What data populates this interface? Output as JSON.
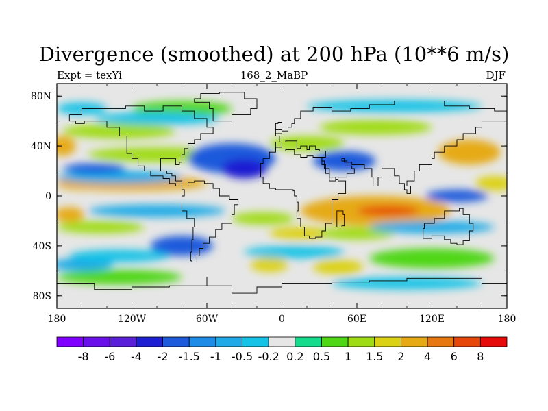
{
  "title": "Divergence (smoothed) at 200 hPa (10**6 m/s)",
  "subtitle_left": "Expt = texYi",
  "subtitle_center": "168_2_MaBP",
  "subtitle_right": "DJF",
  "map": {
    "lon_range": [
      -180,
      180
    ],
    "lat_range": [
      -90,
      90
    ],
    "x_ticks": [
      {
        "value": -180,
        "label": "180"
      },
      {
        "value": -120,
        "label": "120W"
      },
      {
        "value": -60,
        "label": "60W"
      },
      {
        "value": 0,
        "label": "0"
      },
      {
        "value": 60,
        "label": "60E"
      },
      {
        "value": 120,
        "label": "120E"
      },
      {
        "value": 180,
        "label": "180"
      }
    ],
    "y_ticks": [
      {
        "value": 80,
        "label": "80N"
      },
      {
        "value": 40,
        "label": "40N"
      },
      {
        "value": 0,
        "label": "0"
      },
      {
        "value": -40,
        "label": "40S"
      },
      {
        "value": -80,
        "label": "80S"
      }
    ],
    "background_color": "#e6e6e6",
    "coastline_color": "#000000"
  },
  "colorbar": {
    "colors": [
      "#7f00ff",
      "#6a10ea",
      "#5a1fd8",
      "#1e1ed2",
      "#1e5adc",
      "#1e8ce6",
      "#1eaae6",
      "#14c3e6",
      "#e6e6e6",
      "#14dc8c",
      "#50d714",
      "#a0dc14",
      "#dcd214",
      "#e6aa14",
      "#e6780f",
      "#e6460a",
      "#e60a0a"
    ],
    "labels": [
      "-8",
      "-6",
      "-4",
      "-2",
      "-1.5",
      "-1",
      "-0.5",
      "-0.2",
      "0.2",
      "0.5",
      "1",
      "1.5",
      "2",
      "4",
      "6",
      "8"
    ]
  },
  "field_blobs": [
    {
      "lon": -120,
      "lat": 10,
      "rx": 60,
      "ry": 6,
      "value": 2
    },
    {
      "lon": -160,
      "lat": 10,
      "rx": 20,
      "ry": 5,
      "value": 2
    },
    {
      "lon": -175,
      "lat": 40,
      "rx": 10,
      "ry": 8,
      "value": 2
    },
    {
      "lon": -170,
      "lat": -15,
      "rx": 12,
      "ry": 6,
      "value": 2
    },
    {
      "lon": -100,
      "lat": 33,
      "rx": 55,
      "ry": 6,
      "value": 1
    },
    {
      "lon": -130,
      "lat": 52,
      "rx": 45,
      "ry": 6,
      "value": 1
    },
    {
      "lon": -80,
      "lat": 70,
      "rx": 40,
      "ry": 6,
      "value": 0.5
    },
    {
      "lon": 20,
      "lat": 42,
      "rx": 30,
      "ry": 6,
      "value": 1
    },
    {
      "lon": 75,
      "lat": 55,
      "rx": 45,
      "ry": 6,
      "value": 1
    },
    {
      "lon": 75,
      "lat": -12,
      "rx": 60,
      "ry": 12,
      "value": 2
    },
    {
      "lon": 85,
      "lat": -12,
      "rx": 25,
      "ry": 4,
      "value": 6
    },
    {
      "lon": 150,
      "lat": 35,
      "rx": 25,
      "ry": 10,
      "value": 2
    },
    {
      "lon": 170,
      "lat": 10,
      "rx": 15,
      "ry": 6,
      "value": 1.5
    },
    {
      "lon": 15,
      "lat": -30,
      "rx": 25,
      "ry": 5,
      "value": 1.5
    },
    {
      "lon": 60,
      "lat": -30,
      "rx": 30,
      "ry": 5,
      "value": 1
    },
    {
      "lon": -15,
      "lat": -18,
      "rx": 25,
      "ry": 5,
      "value": 1
    },
    {
      "lon": -145,
      "lat": -25,
      "rx": 35,
      "ry": 5,
      "value": 1
    },
    {
      "lon": 45,
      "lat": -57,
      "rx": 20,
      "ry": 6,
      "value": 1.5
    },
    {
      "lon": -10,
      "lat": -55,
      "rx": 15,
      "ry": 6,
      "value": 1.5
    },
    {
      "lon": 120,
      "lat": -50,
      "rx": 50,
      "ry": 8,
      "value": 0.5
    },
    {
      "lon": -130,
      "lat": -65,
      "rx": 50,
      "ry": 6,
      "value": 0.5
    },
    {
      "lon": -40,
      "lat": 30,
      "rx": 35,
      "ry": 12,
      "value": -2
    },
    {
      "lon": -30,
      "lat": 22,
      "rx": 18,
      "ry": 8,
      "value": -4
    },
    {
      "lon": 50,
      "lat": 28,
      "rx": 25,
      "ry": 8,
      "value": -2
    },
    {
      "lon": -130,
      "lat": 15,
      "rx": 50,
      "ry": 5,
      "value": -1
    },
    {
      "lon": -150,
      "lat": 22,
      "rx": 25,
      "ry": 4,
      "value": -2
    },
    {
      "lon": -80,
      "lat": -40,
      "rx": 25,
      "ry": 8,
      "value": -2
    },
    {
      "lon": 140,
      "lat": 0,
      "rx": 25,
      "ry": 5,
      "value": -2
    },
    {
      "lon": 120,
      "lat": -25,
      "rx": 50,
      "ry": 5,
      "value": -1
    },
    {
      "lon": -100,
      "lat": -12,
      "rx": 55,
      "ry": 5,
      "value": -1
    },
    {
      "lon": -100,
      "lat": 62,
      "rx": 50,
      "ry": 5,
      "value": -0.5
    },
    {
      "lon": 90,
      "lat": 72,
      "rx": 70,
      "ry": 5,
      "value": -0.5
    },
    {
      "lon": -160,
      "lat": 70,
      "rx": 20,
      "ry": 5,
      "value": -0.5
    },
    {
      "lon": 10,
      "lat": -45,
      "rx": 40,
      "ry": 5,
      "value": -0.5
    },
    {
      "lon": 100,
      "lat": -70,
      "rx": 60,
      "ry": 5,
      "value": -0.5
    },
    {
      "lon": -160,
      "lat": -55,
      "rx": 25,
      "ry": 5,
      "value": -1
    },
    {
      "lon": -130,
      "lat": -48,
      "rx": 40,
      "ry": 5,
      "value": -0.5
    }
  ],
  "coastlines": [
    [
      [
        -170,
        65
      ],
      [
        -160,
        70
      ],
      [
        -140,
        70
      ],
      [
        -125,
        72
      ],
      [
        -110,
        68
      ],
      [
        -95,
        72
      ],
      [
        -80,
        68
      ],
      [
        -70,
        62
      ],
      [
        -60,
        55
      ],
      [
        -55,
        50
      ],
      [
        -65,
        45
      ],
      [
        -70,
        42
      ],
      [
        -75,
        38
      ],
      [
        -78,
        33
      ],
      [
        -80,
        27
      ],
      [
        -82,
        25
      ],
      [
        -85,
        30
      ],
      [
        -90,
        30
      ],
      [
        -97,
        27
      ],
      [
        -97,
        20
      ],
      [
        -92,
        18
      ],
      [
        -88,
        16
      ],
      [
        -85,
        12
      ],
      [
        -80,
        8
      ],
      [
        -85,
        10
      ],
      [
        -90,
        14
      ],
      [
        -95,
        16
      ],
      [
        -105,
        20
      ],
      [
        -110,
        24
      ],
      [
        -115,
        30
      ],
      [
        -120,
        34
      ],
      [
        -124,
        40
      ],
      [
        -124,
        48
      ],
      [
        -130,
        55
      ],
      [
        -140,
        60
      ],
      [
        -150,
        60
      ],
      [
        -158,
        58
      ],
      [
        -165,
        60
      ],
      [
        -170,
        65
      ]
    ],
    [
      [
        -80,
        8
      ],
      [
        -75,
        11
      ],
      [
        -70,
        12
      ],
      [
        -62,
        10
      ],
      [
        -55,
        6
      ],
      [
        -50,
        0
      ],
      [
        -42,
        -3
      ],
      [
        -35,
        -7
      ],
      [
        -38,
        -15
      ],
      [
        -40,
        -22
      ],
      [
        -48,
        -27
      ],
      [
        -53,
        -33
      ],
      [
        -58,
        -38
      ],
      [
        -63,
        -42
      ],
      [
        -66,
        -48
      ],
      [
        -68,
        -53
      ],
      [
        -72,
        -52
      ],
      [
        -73,
        -45
      ],
      [
        -72,
        -35
      ],
      [
        -71,
        -25
      ],
      [
        -70,
        -18
      ],
      [
        -76,
        -12
      ],
      [
        -80,
        -5
      ],
      [
        -80,
        0
      ],
      [
        -78,
        5
      ],
      [
        -80,
        8
      ]
    ],
    [
      [
        -10,
        36
      ],
      [
        -5,
        43
      ],
      [
        -2,
        48
      ],
      [
        -5,
        50
      ],
      [
        0,
        52
      ],
      [
        5,
        55
      ],
      [
        8,
        58
      ],
      [
        10,
        62
      ],
      [
        15,
        68
      ],
      [
        25,
        71
      ],
      [
        40,
        68
      ],
      [
        55,
        70
      ],
      [
        70,
        73
      ],
      [
        90,
        76
      ],
      [
        110,
        76
      ],
      [
        130,
        72
      ],
      [
        150,
        70
      ],
      [
        170,
        68
      ],
      [
        180,
        67
      ]
    ],
    [
      [
        180,
        60
      ],
      [
        165,
        60
      ],
      [
        160,
        55
      ],
      [
        155,
        50
      ],
      [
        145,
        45
      ],
      [
        140,
        40
      ],
      [
        130,
        35
      ],
      [
        122,
        30
      ],
      [
        120,
        25
      ],
      [
        110,
        20
      ],
      [
        106,
        12
      ],
      [
        100,
        8
      ],
      [
        103,
        2
      ],
      [
        100,
        5
      ],
      [
        98,
        10
      ],
      [
        94,
        16
      ],
      [
        90,
        22
      ],
      [
        88,
        22
      ],
      [
        80,
        15
      ],
      [
        77,
        8
      ],
      [
        73,
        15
      ],
      [
        72,
        22
      ],
      [
        66,
        25
      ],
      [
        58,
        25
      ],
      [
        56,
        27
      ],
      [
        50,
        30
      ],
      [
        48,
        28
      ],
      [
        52,
        24
      ],
      [
        56,
        22
      ],
      [
        58,
        18
      ],
      [
        52,
        15
      ],
      [
        45,
        13
      ],
      [
        43,
        15
      ],
      [
        38,
        22
      ],
      [
        34,
        28
      ],
      [
        32,
        31
      ],
      [
        35,
        36
      ],
      [
        30,
        37
      ],
      [
        27,
        40
      ],
      [
        22,
        37
      ],
      [
        20,
        40
      ],
      [
        15,
        38
      ],
      [
        12,
        44
      ],
      [
        8,
        44
      ],
      [
        3,
        43
      ],
      [
        0,
        39
      ],
      [
        -5,
        36
      ],
      [
        -10,
        36
      ]
    ],
    [
      [
        -17,
        21
      ],
      [
        -17,
        15
      ],
      [
        -15,
        10
      ],
      [
        -10,
        6
      ],
      [
        -5,
        5
      ],
      [
        0,
        5
      ],
      [
        5,
        5
      ],
      [
        9,
        4
      ],
      [
        10,
        0
      ],
      [
        12,
        -5
      ],
      [
        13,
        -12
      ],
      [
        12,
        -18
      ],
      [
        15,
        -25
      ],
      [
        18,
        -32
      ],
      [
        22,
        -34
      ],
      [
        27,
        -33
      ],
      [
        32,
        -28
      ],
      [
        35,
        -22
      ],
      [
        40,
        -15
      ],
      [
        40,
        -10
      ],
      [
        40,
        -3
      ],
      [
        45,
        2
      ],
      [
        51,
        12
      ],
      [
        45,
        13
      ],
      [
        43,
        12
      ],
      [
        38,
        18
      ],
      [
        35,
        25
      ],
      [
        32,
        31
      ],
      [
        25,
        32
      ],
      [
        20,
        31
      ],
      [
        15,
        33
      ],
      [
        10,
        37
      ],
      [
        3,
        36
      ],
      [
        -5,
        35
      ],
      [
        -10,
        30
      ],
      [
        -15,
        26
      ],
      [
        -17,
        21
      ]
    ],
    [
      [
        114,
        -22
      ],
      [
        122,
        -18
      ],
      [
        130,
        -12
      ],
      [
        137,
        -12
      ],
      [
        142,
        -10
      ],
      [
        145,
        -15
      ],
      [
        150,
        -22
      ],
      [
        153,
        -28
      ],
      [
        150,
        -36
      ],
      [
        145,
        -39
      ],
      [
        140,
        -38
      ],
      [
        135,
        -35
      ],
      [
        130,
        -32
      ],
      [
        120,
        -34
      ],
      [
        115,
        -34
      ],
      [
        113,
        -26
      ],
      [
        114,
        -22
      ]
    ],
    [
      [
        -55,
        60
      ],
      [
        -45,
        60
      ],
      [
        -40,
        65
      ],
      [
        -25,
        70
      ],
      [
        -20,
        78
      ],
      [
        -30,
        83
      ],
      [
        -50,
        82
      ],
      [
        -65,
        78
      ],
      [
        -70,
        75
      ],
      [
        -58,
        70
      ],
      [
        -55,
        60
      ]
    ],
    [
      [
        -180,
        -70
      ],
      [
        -150,
        -75
      ],
      [
        -120,
        -73
      ],
      [
        -90,
        -72
      ],
      [
        -60,
        -65
      ],
      [
        -60,
        -72
      ],
      [
        -40,
        -78
      ],
      [
        -20,
        -73
      ],
      [
        0,
        -70
      ],
      [
        40,
        -69
      ],
      [
        70,
        -68
      ],
      [
        100,
        -66
      ],
      [
        130,
        -66
      ],
      [
        160,
        -70
      ],
      [
        180,
        -70
      ]
    ],
    [
      [
        44,
        -25
      ],
      [
        48,
        -24
      ],
      [
        50,
        -15
      ],
      [
        49,
        -12
      ],
      [
        44,
        -17
      ],
      [
        44,
        -25
      ]
    ],
    [
      [
        -5,
        50
      ],
      [
        -5,
        58
      ],
      [
        -3,
        59
      ],
      [
        0,
        53
      ],
      [
        -5,
        50
      ]
    ]
  ]
}
